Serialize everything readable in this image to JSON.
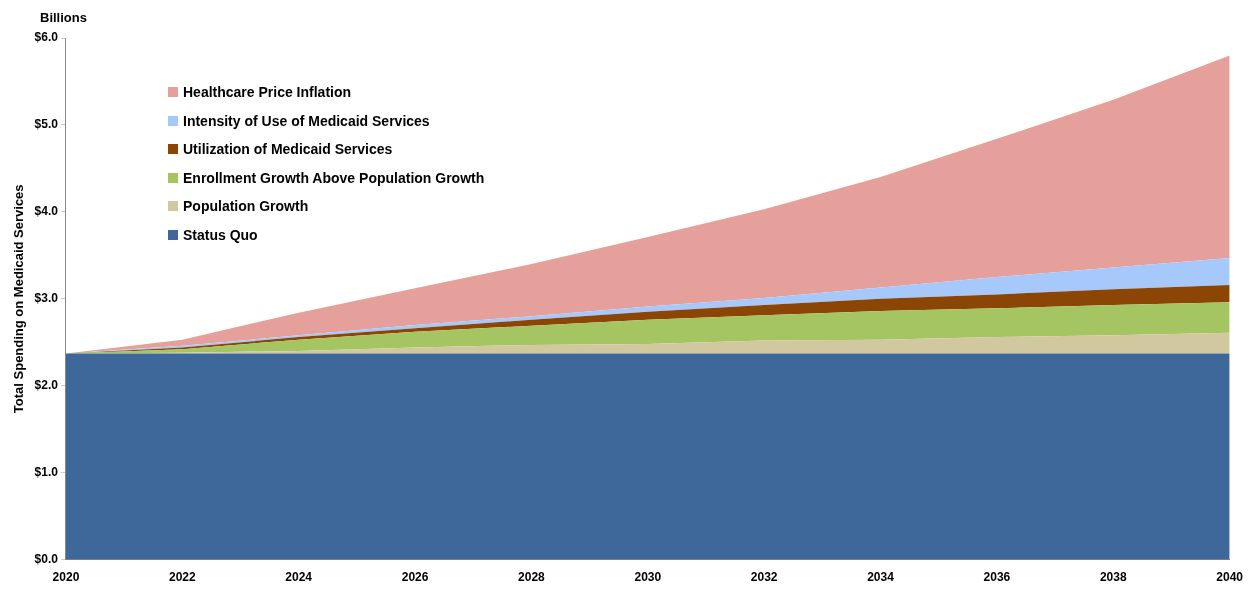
{
  "chart_data": {
    "type": "area",
    "stacked": true,
    "ylabel": "Total Spending on Medicaid Services",
    "annotations": [
      "Billions"
    ],
    "x": [
      2020,
      2022,
      2024,
      2026,
      2028,
      2030,
      2032,
      2034,
      2036,
      2038,
      2040
    ],
    "xlim": [
      2020,
      2040
    ],
    "xticks": [
      2020,
      2022,
      2024,
      2026,
      2028,
      2030,
      2032,
      2034,
      2036,
      2038,
      2040
    ],
    "ylim": [
      0,
      6
    ],
    "yticks": [
      {
        "value": 0,
        "label": "$0.0"
      },
      {
        "value": 1,
        "label": "$1.0"
      },
      {
        "value": 2,
        "label": "$2.0"
      },
      {
        "value": 3,
        "label": "$3.0"
      },
      {
        "value": 4,
        "label": "$4.0"
      },
      {
        "value": 5,
        "label": "$5.0"
      },
      {
        "value": 6,
        "label": "$6.0"
      }
    ],
    "grid": false,
    "legend": "top left",
    "series": [
      {
        "name": "Status Quo",
        "color": "#3e6899",
        "values": [
          2.37,
          2.37,
          2.37,
          2.37,
          2.37,
          2.37,
          2.37,
          2.37,
          2.37,
          2.37,
          2.37
        ]
      },
      {
        "name": "Population Growth",
        "color": "#d2c8a0",
        "values": [
          0,
          0.01,
          0.03,
          0.07,
          0.1,
          0.11,
          0.15,
          0.16,
          0.19,
          0.21,
          0.24
        ]
      },
      {
        "name": "Enrollment Growth Above Population Growth",
        "color": "#a5c562",
        "values": [
          0,
          0.04,
          0.13,
          0.18,
          0.22,
          0.28,
          0.29,
          0.33,
          0.33,
          0.35,
          0.35
        ]
      },
      {
        "name": "Utilization of Medicaid Services",
        "color": "#8b4505",
        "values": [
          0,
          0.02,
          0.03,
          0.04,
          0.07,
          0.09,
          0.12,
          0.14,
          0.16,
          0.18,
          0.2
        ]
      },
      {
        "name": "Intensity of Use of Medicaid Services",
        "color": "#a6c8fa",
        "values": [
          0,
          0.02,
          0.02,
          0.04,
          0.04,
          0.06,
          0.08,
          0.13,
          0.2,
          0.25,
          0.31
        ]
      },
      {
        "name": "Healthcare Price Inflation",
        "color": "#e5a09c",
        "values": [
          0,
          0.07,
          0.26,
          0.42,
          0.6,
          0.8,
          1.02,
          1.27,
          1.59,
          1.93,
          2.33
        ]
      }
    ]
  }
}
